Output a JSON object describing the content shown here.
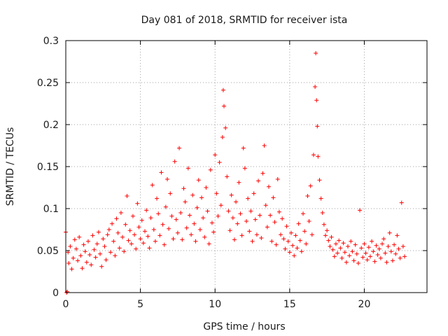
{
  "chart_data": {
    "type": "scatter",
    "title": "Day 081 of 2018, SRMTID for receiver ista",
    "xlabel": "GPS time / hours",
    "ylabel": "SRMTID / TECUs",
    "xlim": [
      0,
      24.2
    ],
    "ylim": [
      0,
      0.3
    ],
    "xticks": [
      "0",
      "5",
      "10",
      "15",
      "20"
    ],
    "yticks": [
      "0",
      "0.05",
      "0.1",
      "0.15",
      "0.2",
      "0.25",
      "0.3"
    ],
    "grid": true,
    "marker": "+",
    "marker_color": "#ff0000",
    "series": [
      {
        "name": "SRMTID",
        "x": [
          0.0,
          0.05,
          0.1,
          0.15,
          0.2,
          0.3,
          0.4,
          0.5,
          0.6,
          0.7,
          0.8,
          0.9,
          1.0,
          1.1,
          1.2,
          1.3,
          1.4,
          1.5,
          1.6,
          1.7,
          1.8,
          1.9,
          2.0,
          2.1,
          2.2,
          2.3,
          2.4,
          2.5,
          2.6,
          2.7,
          2.8,
          2.9,
          3.0,
          3.1,
          3.2,
          3.3,
          3.4,
          3.5,
          3.6,
          3.7,
          3.8,
          3.9,
          4.0,
          4.1,
          4.2,
          4.3,
          4.4,
          4.5,
          4.6,
          4.7,
          4.8,
          4.9,
          5.0,
          5.1,
          5.2,
          5.3,
          5.4,
          5.5,
          5.6,
          5.7,
          5.8,
          5.9,
          6.0,
          6.1,
          6.2,
          6.3,
          6.4,
          6.5,
          6.6,
          6.7,
          6.8,
          6.9,
          7.0,
          7.1,
          7.2,
          7.3,
          7.4,
          7.5,
          7.6,
          7.7,
          7.8,
          7.9,
          8.0,
          8.1,
          8.2,
          8.3,
          8.4,
          8.5,
          8.6,
          8.7,
          8.8,
          8.9,
          9.0,
          9.1,
          9.2,
          9.3,
          9.4,
          9.5,
          9.6,
          9.7,
          9.8,
          9.9,
          10.0,
          10.1,
          10.2,
          10.3,
          10.4,
          10.5,
          10.55,
          10.6,
          10.7,
          10.8,
          10.9,
          11.0,
          11.1,
          11.2,
          11.3,
          11.4,
          11.5,
          11.6,
          11.7,
          11.8,
          11.9,
          12.0,
          12.1,
          12.2,
          12.3,
          12.4,
          12.5,
          12.6,
          12.7,
          12.8,
          12.9,
          13.0,
          13.1,
          13.2,
          13.3,
          13.4,
          13.5,
          13.6,
          13.7,
          13.8,
          13.9,
          14.0,
          14.1,
          14.2,
          14.3,
          14.4,
          14.5,
          14.6,
          14.7,
          14.8,
          14.9,
          15.0,
          15.1,
          15.2,
          15.3,
          15.4,
          15.5,
          15.6,
          15.7,
          15.8,
          15.9,
          16.0,
          16.1,
          16.2,
          16.3,
          16.4,
          16.5,
          16.6,
          16.7,
          16.75,
          16.8,
          16.85,
          16.9,
          17.0,
          17.1,
          17.2,
          17.3,
          17.4,
          17.5,
          17.6,
          17.7,
          17.8,
          17.9,
          18.0,
          18.1,
          18.2,
          18.3,
          18.4,
          18.5,
          18.6,
          18.7,
          18.8,
          18.9,
          19.0,
          19.1,
          19.2,
          19.3,
          19.4,
          19.5,
          19.6,
          19.7,
          19.8,
          19.9,
          20.0,
          20.1,
          20.2,
          20.3,
          20.4,
          20.5,
          20.6,
          20.7,
          20.8,
          20.9,
          21.0,
          21.1,
          21.2,
          21.3,
          21.4,
          21.5,
          21.6,
          21.7,
          21.8,
          21.9,
          22.0,
          22.1,
          22.2,
          22.3,
          22.4,
          22.5,
          22.6,
          22.7
        ],
        "y": [
          0.072,
          0.0,
          0.001,
          0.048,
          0.035,
          0.055,
          0.028,
          0.041,
          0.063,
          0.052,
          0.038,
          0.066,
          0.044,
          0.029,
          0.057,
          0.049,
          0.036,
          0.061,
          0.045,
          0.033,
          0.068,
          0.051,
          0.042,
          0.058,
          0.072,
          0.046,
          0.031,
          0.064,
          0.055,
          0.039,
          0.069,
          0.075,
          0.048,
          0.082,
          0.061,
          0.044,
          0.088,
          0.071,
          0.053,
          0.095,
          0.066,
          0.049,
          0.081,
          0.115,
          0.062,
          0.074,
          0.058,
          0.091,
          0.069,
          0.052,
          0.106,
          0.078,
          0.064,
          0.086,
          0.059,
          0.073,
          0.098,
          0.067,
          0.053,
          0.089,
          0.128,
          0.075,
          0.061,
          0.112,
          0.094,
          0.068,
          0.143,
          0.081,
          0.057,
          0.102,
          0.135,
          0.076,
          0.118,
          0.091,
          0.064,
          0.156,
          0.087,
          0.071,
          0.172,
          0.095,
          0.063,
          0.124,
          0.108,
          0.077,
          0.148,
          0.092,
          0.069,
          0.116,
          0.082,
          0.061,
          0.101,
          0.134,
          0.075,
          0.113,
          0.089,
          0.066,
          0.125,
          0.097,
          0.058,
          0.146,
          0.083,
          0.072,
          0.164,
          0.118,
          0.091,
          0.155,
          0.104,
          0.185,
          0.241,
          0.222,
          0.196,
          0.138,
          0.097,
          0.074,
          0.116,
          0.089,
          0.063,
          0.108,
          0.082,
          0.131,
          0.094,
          0.068,
          0.172,
          0.148,
          0.085,
          0.112,
          0.073,
          0.097,
          0.061,
          0.118,
          0.087,
          0.069,
          0.133,
          0.092,
          0.065,
          0.142,
          0.175,
          0.104,
          0.078,
          0.126,
          0.092,
          0.061,
          0.113,
          0.084,
          0.057,
          0.135,
          0.096,
          0.069,
          0.088,
          0.064,
          0.052,
          0.079,
          0.061,
          0.048,
          0.071,
          0.056,
          0.044,
          0.068,
          0.053,
          0.082,
          0.062,
          0.049,
          0.094,
          0.073,
          0.058,
          0.115,
          0.085,
          0.127,
          0.069,
          0.164,
          0.245,
          0.285,
          0.229,
          0.198,
          0.162,
          0.134,
          0.112,
          0.095,
          0.081,
          0.068,
          0.074,
          0.062,
          0.055,
          0.066,
          0.051,
          0.043,
          0.058,
          0.047,
          0.062,
          0.053,
          0.041,
          0.059,
          0.048,
          0.036,
          0.055,
          0.044,
          0.061,
          0.049,
          0.038,
          0.057,
          0.046,
          0.035,
          0.098,
          0.053,
          0.042,
          0.058,
          0.047,
          0.039,
          0.054,
          0.043,
          0.061,
          0.049,
          0.037,
          0.056,
          0.045,
          0.052,
          0.041,
          0.058,
          0.064,
          0.047,
          0.036,
          0.055,
          0.071,
          0.049,
          0.038,
          0.057,
          0.046,
          0.068,
          0.052,
          0.041,
          0.107,
          0.055,
          0.043
        ]
      }
    ]
  }
}
